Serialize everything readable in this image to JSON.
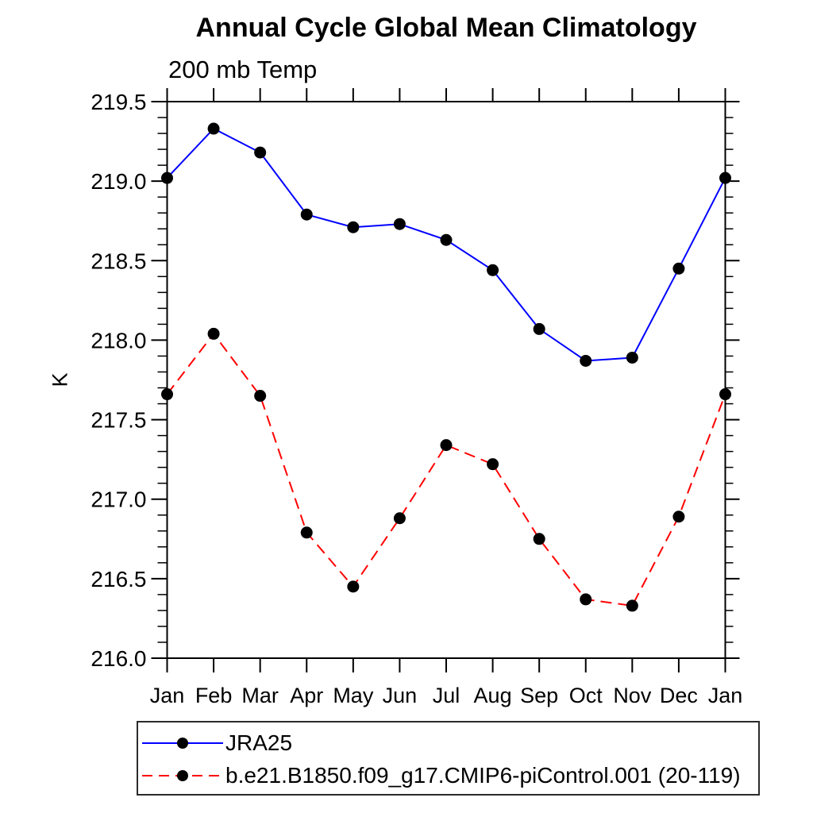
{
  "chart_data": {
    "type": "line",
    "title": "Annual Cycle Global Mean Climatology",
    "subtitle": "200 mb Temp",
    "xlabel": "",
    "ylabel": "K",
    "categories": [
      "Jan",
      "Feb",
      "Mar",
      "Apr",
      "May",
      "Jun",
      "Jul",
      "Aug",
      "Sep",
      "Oct",
      "Nov",
      "Dec",
      "Jan"
    ],
    "series": [
      {
        "name": "JRA25",
        "color": "#0000ff",
        "line_style": "solid",
        "marker": "filled-circle",
        "marker_color": "#000000",
        "values": [
          219.02,
          219.33,
          219.18,
          218.79,
          218.71,
          218.73,
          218.63,
          218.44,
          218.07,
          217.87,
          217.89,
          218.45,
          219.02
        ]
      },
      {
        "name": "b.e21.B1850.f09_g17.CMIP6-piControl.001 (20-119)",
        "color": "#ff0000",
        "line_style": "dashed",
        "marker": "filled-circle",
        "marker_color": "#000000",
        "values": [
          217.66,
          218.04,
          217.65,
          216.79,
          216.45,
          216.88,
          217.34,
          217.22,
          216.75,
          216.37,
          216.33,
          216.89,
          217.66
        ]
      }
    ],
    "ylim": [
      216.0,
      219.5
    ],
    "ytick_step": 0.5,
    "yminor_step": 0.1,
    "ytick_labels": [
      "216.0",
      "216.5",
      "217.0",
      "217.5",
      "218.0",
      "218.5",
      "219.0",
      "219.5"
    ],
    "grid": false,
    "axis_box": true,
    "tick_direction": "out",
    "legend_position": "bottom-left",
    "axis_color": "#000000"
  }
}
